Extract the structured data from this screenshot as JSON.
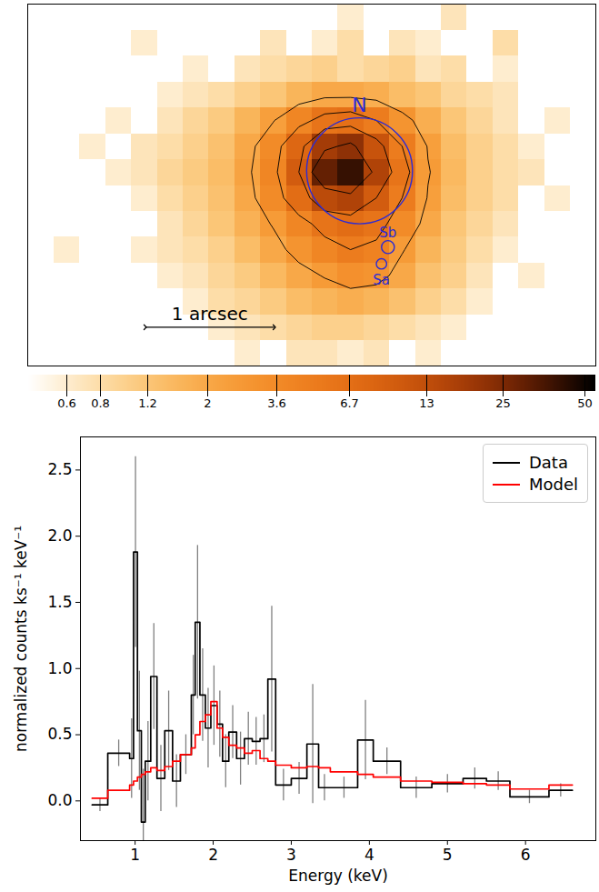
{
  "chart_data": [
    {
      "type": "image",
      "xlim": [
        0,
        4.4
      ],
      "ylim": [
        0,
        2.8
      ],
      "tick_labels": false,
      "log": true,
      "image": {
        "columns": 22,
        "rows": [
          [
            null,
            null,
            null,
            null,
            null,
            null,
            null,
            null,
            null,
            null,
            null,
            null,
            0.6,
            null,
            null,
            null,
            0.7,
            null,
            null,
            null,
            null,
            null
          ],
          [
            null,
            null,
            null,
            null,
            0.6,
            null,
            null,
            null,
            null,
            0.7,
            null,
            0.6,
            0.8,
            null,
            0.7,
            0.6,
            null,
            null,
            0.8,
            null,
            null,
            null
          ],
          [
            null,
            null,
            null,
            null,
            null,
            null,
            0.6,
            null,
            0.7,
            0.8,
            0.9,
            1.0,
            0.8,
            0.9,
            1.0,
            0.7,
            0.8,
            null,
            0.6,
            null,
            null,
            null
          ],
          [
            null,
            null,
            null,
            null,
            null,
            0.6,
            0.7,
            0.8,
            1.0,
            1.2,
            1.6,
            2.0,
            2.0,
            1.8,
            1.4,
            1.2,
            0.9,
            0.8,
            0.7,
            null,
            null,
            null
          ],
          [
            null,
            null,
            null,
            0.6,
            null,
            0.7,
            0.9,
            1.1,
            1.6,
            2.4,
            4.0,
            6.0,
            6.5,
            5.0,
            3.0,
            1.8,
            1.2,
            0.9,
            0.7,
            null,
            0.6,
            null
          ],
          [
            null,
            null,
            0.6,
            null,
            0.7,
            0.8,
            1.0,
            1.3,
            2.0,
            3.6,
            8.0,
            18,
            22,
            12,
            5.0,
            2.4,
            1.4,
            1.0,
            0.8,
            0.6,
            null,
            null
          ],
          [
            null,
            null,
            null,
            0.6,
            0.7,
            0.9,
            1.1,
            1.4,
            2.2,
            4.0,
            10,
            30,
            40,
            16,
            6.0,
            2.6,
            1.5,
            1.0,
            0.8,
            0.7,
            null,
            null
          ],
          [
            null,
            null,
            null,
            null,
            0.6,
            0.8,
            1.0,
            1.3,
            2.0,
            3.6,
            7.0,
            14,
            16,
            10,
            5.0,
            2.4,
            1.4,
            1.0,
            0.8,
            null,
            0.6,
            null
          ],
          [
            null,
            null,
            null,
            null,
            null,
            0.7,
            0.9,
            1.2,
            1.7,
            2.6,
            4.0,
            6.0,
            7.0,
            6.0,
            3.6,
            2.0,
            1.2,
            0.9,
            0.7,
            null,
            null,
            null
          ],
          [
            null,
            0.6,
            null,
            null,
            0.6,
            0.7,
            0.8,
            1.0,
            1.4,
            2.0,
            3.0,
            4.0,
            5.0,
            4.4,
            2.6,
            1.6,
            1.1,
            0.8,
            0.6,
            null,
            null,
            null
          ],
          [
            null,
            null,
            null,
            null,
            null,
            0.6,
            0.7,
            0.9,
            1.1,
            1.5,
            2.0,
            2.6,
            3.2,
            3.0,
            2.0,
            1.3,
            1.0,
            0.7,
            null,
            0.6,
            null,
            null
          ],
          [
            null,
            null,
            null,
            null,
            null,
            null,
            0.6,
            0.8,
            0.9,
            1.1,
            1.4,
            1.6,
            1.8,
            1.6,
            1.3,
            1.0,
            0.8,
            0.6,
            null,
            null,
            null,
            null
          ],
          [
            null,
            null,
            null,
            null,
            null,
            null,
            null,
            0.6,
            0.7,
            0.8,
            0.9,
            1.0,
            1.0,
            0.9,
            0.8,
            0.7,
            0.6,
            null,
            null,
            null,
            null,
            null
          ],
          [
            null,
            null,
            null,
            null,
            null,
            null,
            null,
            null,
            0.6,
            null,
            0.7,
            0.7,
            0.6,
            0.7,
            null,
            0.6,
            null,
            null,
            null,
            null,
            null,
            null
          ]
        ]
      },
      "contour_levels": [
        2.5,
        5,
        10,
        20
      ],
      "colorbar": {
        "range": [
          0.43,
          55
        ],
        "ticks": [
          0.6,
          0.8,
          1.2,
          2,
          3.6,
          6.7,
          13,
          25,
          50
        ]
      },
      "regions": [
        {
          "name": "N",
          "x": 2.57,
          "y": 1.51,
          "radius": 0.41,
          "color": "#2b2bd6"
        },
        {
          "name": "Sb",
          "x": 2.79,
          "y": 0.92,
          "radius": 0.05,
          "color": "#2b2bd6"
        },
        {
          "name": "Sa",
          "x": 2.74,
          "y": 0.79,
          "radius": 0.04,
          "color": "#2b2bd6"
        }
      ],
      "scale_bar": {
        "label": "1 arcsec",
        "x": [
          0.91,
          1.91
        ],
        "y": 0.3
      }
    },
    {
      "type": "step",
      "x_label": "Energy (keV)",
      "y_label": "normalized counts ks⁻¹ keV⁻¹",
      "xlim": [
        0.3,
        6.9
      ],
      "ylim": [
        -0.3,
        2.75
      ],
      "xticks": [
        1,
        2,
        3,
        4,
        5,
        6
      ],
      "yticks": [
        {
          "value": 0,
          "label": "0.0"
        },
        0.5,
        {
          "value": 1,
          "label": "1.0"
        },
        1.5,
        {
          "value": 2,
          "label": "2.0"
        },
        2.5
      ],
      "legend": "upper right",
      "grid": false,
      "bins": [
        0.45,
        0.65,
        0.93,
        0.98,
        1.03,
        1.08,
        1.13,
        1.2,
        1.28,
        1.38,
        1.48,
        1.58,
        1.72,
        1.77,
        1.83,
        1.9,
        1.97,
        2.05,
        2.12,
        2.2,
        2.3,
        2.4,
        2.5,
        2.6,
        2.7,
        2.8,
        3.0,
        3.2,
        3.35,
        3.5,
        3.85,
        4.05,
        4.4,
        4.8,
        5.2,
        5.5,
        5.8,
        6.3,
        6.6
      ],
      "series": [
        {
          "name": "Data",
          "color": "#000000",
          "values": [
            -0.03,
            0.36,
            0.32,
            1.88,
            0.53,
            -0.16,
            0.3,
            0.94,
            0.17,
            0.53,
            0.15,
            0.35,
            0.8,
            1.35,
            0.8,
            0.55,
            0.72,
            0.58,
            0.3,
            0.52,
            0.32,
            0.47,
            0.45,
            0.47,
            0.92,
            0.12,
            0.17,
            0.43,
            0.1,
            0.1,
            0.46,
            0.3,
            0.1,
            0.13,
            0.17,
            0.15,
            0.03,
            0.08
          ],
          "errors": [
            0.05,
            0.1,
            0.3,
            0.72,
            0.45,
            0.4,
            0.3,
            0.4,
            0.25,
            0.3,
            0.2,
            0.15,
            0.3,
            0.58,
            0.35,
            0.3,
            0.3,
            0.25,
            0.2,
            0.2,
            0.2,
            0.2,
            0.18,
            0.18,
            0.55,
            0.12,
            0.12,
            0.45,
            0.1,
            0.08,
            0.3,
            0.1,
            0.08,
            0.07,
            0.08,
            0.07,
            0.05,
            0.05
          ]
        },
        {
          "name": "Model",
          "color": "#ff0000",
          "values": [
            0.02,
            0.08,
            0.12,
            0.15,
            0.18,
            0.2,
            0.22,
            0.25,
            0.23,
            0.26,
            0.3,
            0.35,
            0.4,
            0.5,
            0.6,
            0.65,
            0.75,
            0.55,
            0.48,
            0.42,
            0.4,
            0.36,
            0.38,
            0.32,
            0.3,
            0.27,
            0.25,
            0.26,
            0.25,
            0.22,
            0.2,
            0.18,
            0.15,
            0.14,
            0.13,
            0.12,
            0.09,
            0.12
          ]
        }
      ]
    }
  ]
}
